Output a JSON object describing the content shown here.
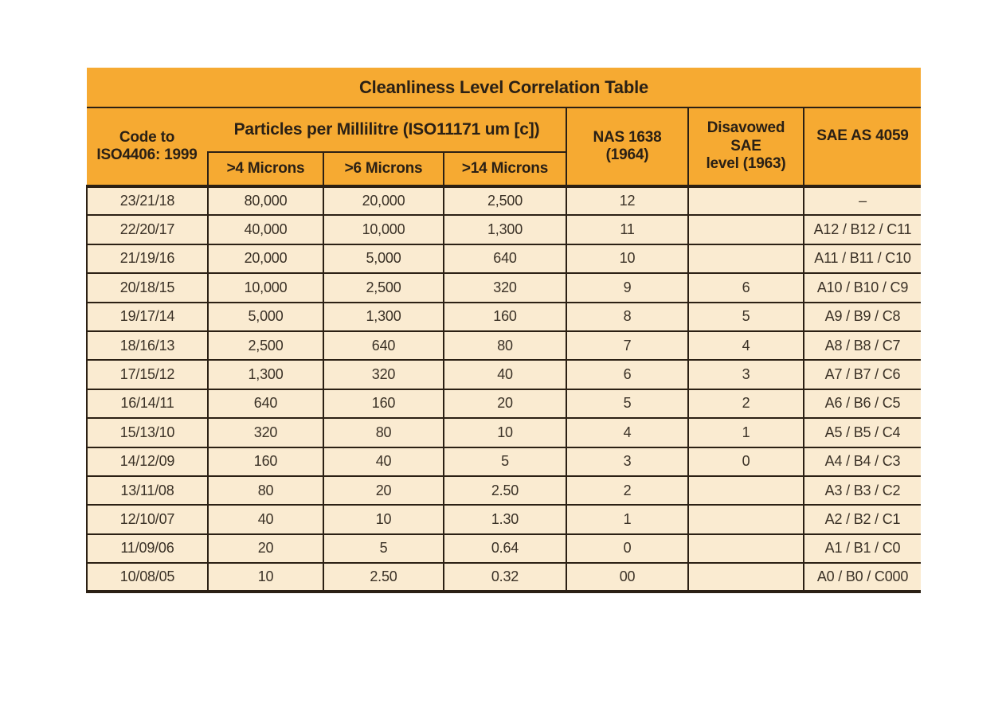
{
  "title": "Cleanliness Level Correlation Table",
  "table": {
    "headers": {
      "code": "Code to\nISO4406: 1999",
      "particles_group": "Particles per Millilitre (ISO11171 um [c])",
      "sub_4": ">4 Microns",
      "sub_6": ">6 Microns",
      "sub_14": ">14 Microns",
      "nas": "NAS 1638\n(1964)",
      "disavowed": "Disavowed SAE\nlevel (1963)",
      "sae": "SAE AS 4059"
    },
    "rows": [
      [
        "23/21/18",
        "80,000",
        "20,000",
        "2,500",
        "12",
        "",
        "–"
      ],
      [
        "22/20/17",
        "40,000",
        "10,000",
        "1,300",
        "11",
        "",
        "A12 / B12 / C11"
      ],
      [
        "21/19/16",
        "20,000",
        "5,000",
        "640",
        "10",
        "",
        "A11 / B11 / C10"
      ],
      [
        "20/18/15",
        "10,000",
        "2,500",
        "320",
        "9",
        "6",
        "A10 / B10 / C9"
      ],
      [
        "19/17/14",
        "5,000",
        "1,300",
        "160",
        "8",
        "5",
        "A9 / B9 / C8"
      ],
      [
        "18/16/13",
        "2,500",
        "640",
        "80",
        "7",
        "4",
        "A8 / B8 / C7"
      ],
      [
        "17/15/12",
        "1,300",
        "320",
        "40",
        "6",
        "3",
        "A7 / B7 / C6"
      ],
      [
        "16/14/11",
        "640",
        "160",
        "20",
        "5",
        "2",
        "A6 / B6 / C5"
      ],
      [
        "15/13/10",
        "320",
        "80",
        "10",
        "4",
        "1",
        "A5 / B5 / C4"
      ],
      [
        "14/12/09",
        "160",
        "40",
        "5",
        "3",
        "0",
        "A4 / B4 / C3"
      ],
      [
        "13/11/08",
        "80",
        "20",
        "2.50",
        "2",
        "",
        "A3 / B3 / C2"
      ],
      [
        "12/10/07",
        "40",
        "10",
        "1.30",
        "1",
        "",
        "A2 / B2 / C1"
      ],
      [
        "11/09/06",
        "20",
        "5",
        "0.64",
        "0",
        "",
        "A1 / B1 / C0"
      ],
      [
        "10/08/05",
        "10",
        "2.50",
        "0.32",
        "00",
        "",
        "A0 / B0 / C000"
      ]
    ],
    "colors": {
      "header_bg": "#F6AA32",
      "row_bg": "#FAEBD1",
      "border": "#2B2014",
      "header_text": "#2A2015",
      "cell_text": "#3A3126"
    }
  }
}
